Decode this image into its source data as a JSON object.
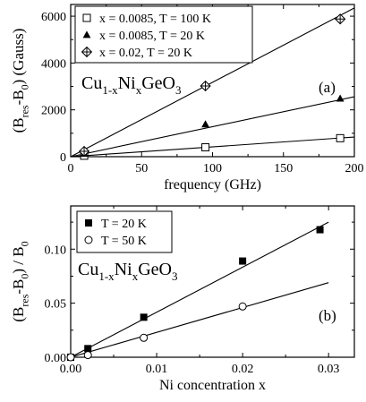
{
  "chart_data": [
    {
      "type": "scatter",
      "panel_label": "(a)",
      "xlabel": "frequency (GHz)",
      "ylabel_parts": [
        "(B",
        "res",
        "-B",
        "0",
        ") (Gauss)"
      ],
      "compound_parts": [
        "Cu",
        "1-x",
        "Ni",
        "x",
        "GeO",
        "3"
      ],
      "xlim": [
        0,
        200
      ],
      "ylim": [
        0,
        6500
      ],
      "xticks": [
        "0",
        "50",
        "100",
        "150",
        "200"
      ],
      "xtick_values": [
        0,
        50,
        100,
        150,
        200
      ],
      "yticks": [
        "0",
        "2000",
        "4000",
        "6000"
      ],
      "ytick_values": [
        0,
        2000,
        4000,
        6000
      ],
      "legend_position": "top-left",
      "series": [
        {
          "name": "x = 0.0085, T = 100 K",
          "marker": "open-square",
          "x": [
            9.5,
            95,
            190
          ],
          "y": [
            40,
            400,
            790
          ],
          "fit": {
            "x": [
              0,
              200
            ],
            "y": [
              0,
              840
            ]
          }
        },
        {
          "name": "x = 0.0085, T = 20 K",
          "marker": "filled-triangle",
          "x": [
            9.5,
            95,
            190
          ],
          "y": [
            130,
            1380,
            2480
          ],
          "fit": {
            "x": [
              0,
              200
            ],
            "y": [
              0,
              2560
            ]
          }
        },
        {
          "name": "x = 0.02, T = 20 K",
          "marker": "crossed-diamond",
          "x": [
            9.5,
            95,
            190
          ],
          "y": [
            230,
            3020,
            5880
          ],
          "fit": {
            "x": [
              0,
              200
            ],
            "y": [
              0,
              6350
            ]
          }
        }
      ]
    },
    {
      "type": "scatter",
      "panel_label": "(b)",
      "xlabel": "Ni concentration x",
      "ylabel_parts": [
        "(B",
        "res",
        "-B",
        "0",
        ") / B",
        "0"
      ],
      "compound_parts": [
        "Cu",
        "1-x",
        "Ni",
        "x",
        "GeO",
        "3"
      ],
      "xlim": [
        0,
        0.033
      ],
      "ylim": [
        0,
        0.14
      ],
      "xticks": [
        "0.00",
        "0.01",
        "0.02",
        "0.03"
      ],
      "xtick_values": [
        0,
        0.01,
        0.02,
        0.03
      ],
      "yticks": [
        "0.00",
        "0.05",
        "0.10"
      ],
      "ytick_values": [
        0,
        0.05,
        0.1
      ],
      "legend_position": "top-left",
      "series": [
        {
          "name": "T = 20 K",
          "marker": "filled-square",
          "x": [
            0,
            0.002,
            0.0085,
            0.02,
            0.029
          ],
          "y": [
            0,
            0.008,
            0.037,
            0.089,
            0.118
          ],
          "fit": {
            "x": [
              0,
              0.03
            ],
            "y": [
              0,
              0.125
            ]
          }
        },
        {
          "name": "T = 50 K",
          "marker": "open-circle",
          "x": [
            0,
            0.002,
            0.0085,
            0.02
          ],
          "y": [
            0,
            0.002,
            0.018,
            0.047
          ],
          "fit": {
            "x": [
              0,
              0.03
            ],
            "y": [
              0,
              0.069
            ]
          }
        }
      ]
    }
  ]
}
